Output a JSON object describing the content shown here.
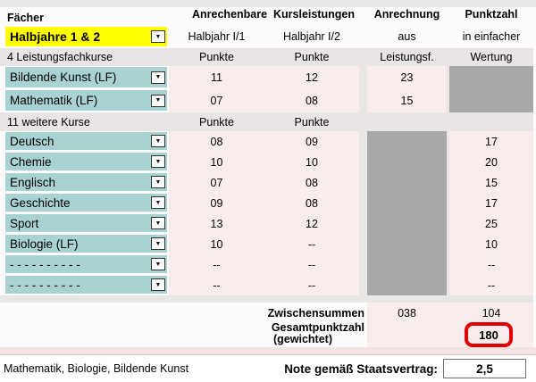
{
  "columns": {
    "subject_header": "Fächer",
    "group_header": "Anrechenbare  Kursleistungen",
    "anrechnung_header": "Anrechnung",
    "punktzahl_header": "Punktzahl",
    "sub_halbjahr1": "Halbjahr I/1",
    "sub_halbjahr2": "Halbjahr I/2",
    "sub_anrechnung": "aus",
    "sub_punktzahl": "in einfacher"
  },
  "period_selector": {
    "value": "Halbjahre 1 & 2"
  },
  "lf_section": {
    "label": "4 Leistungsfachkurse",
    "unit1": "Punkte",
    "unit2": "Punkte",
    "anr_unit": "Leistungsf.",
    "pkt_unit": "Wertung"
  },
  "wk_section": {
    "label": "11 weitere Kurse",
    "unit1": "Punkte",
    "unit2": "Punkte"
  },
  "lf_rows": [
    {
      "label": "Bildende Kunst (LF)",
      "hj1": "11",
      "hj2": "12",
      "anr": "23"
    },
    {
      "label": "Mathematik (LF)",
      "hj1": "07",
      "hj2": "08",
      "anr": "15"
    }
  ],
  "wk_rows": [
    {
      "label": "Deutsch",
      "hj1": "08",
      "hj2": "09",
      "pkt": "17"
    },
    {
      "label": "Chemie",
      "hj1": "10",
      "hj2": "10",
      "pkt": "20"
    },
    {
      "label": "Englisch",
      "hj1": "07",
      "hj2": "08",
      "pkt": "15"
    },
    {
      "label": "Geschichte",
      "hj1": "09",
      "hj2": "08",
      "pkt": "17"
    },
    {
      "label": "Sport",
      "hj1": "13",
      "hj2": "12",
      "pkt": "25"
    },
    {
      "label": "Biologie (LF)",
      "hj1": "10",
      "hj2": "--",
      "pkt": "10"
    },
    {
      "label": "- - - - - - - - - -",
      "hj1": "--",
      "hj2": "--",
      "pkt": "--"
    },
    {
      "label": "- - - - - - - - - -",
      "hj1": "--",
      "hj2": "--",
      "pkt": "--"
    }
  ],
  "totals": {
    "zwischensummen_label": "Zwischensummen",
    "zwischensummen_anrechnung": "038",
    "zwischensummen_punkte": "104",
    "gesamt_label_line1": "Gesamtpunktzahl",
    "gesamt_label_line2": "(gewichtet)",
    "gesamt_value": "180"
  },
  "footer": {
    "subjects_note": "Mathematik, Biologie, Bildende Kunst",
    "grade_label": "Note gemäß Staatsvertrag:",
    "grade_value": "2,5"
  },
  "ui": {
    "dropdown_glyph": "▼"
  },
  "colors": {
    "highlight_yellow": "#FFFF00",
    "row_teal": "#A9D3D2",
    "cell_pink": "#F8EDEC",
    "blocked_gray": "#A8A8A8",
    "band_gray": "#E9E5E5",
    "accent_red": "#DF0000"
  }
}
